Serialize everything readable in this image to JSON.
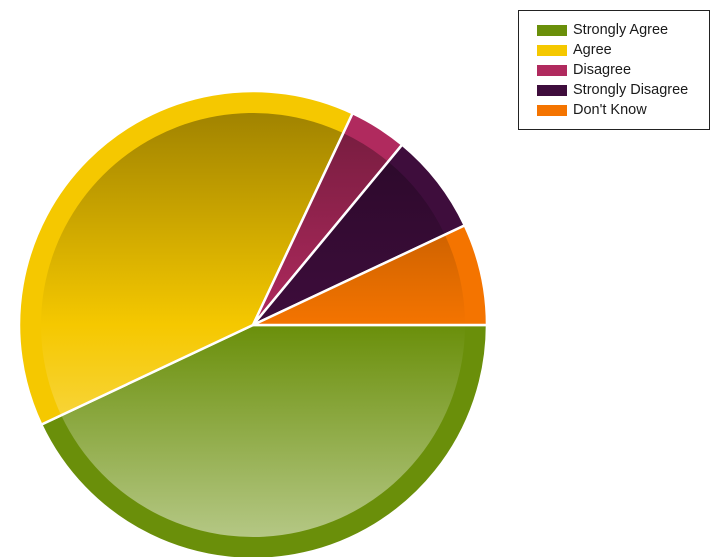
{
  "chart_data": {
    "type": "pie",
    "title": "",
    "categories": [
      "Strongly Agree",
      "Agree",
      "Disagree",
      "Strongly Disagree",
      "Don't Know"
    ],
    "values": [
      43,
      39,
      4,
      7,
      7
    ],
    "colors": [
      "#6a8f0a",
      "#f5c800",
      "#b02a5e",
      "#3e0d3c",
      "#f47400"
    ],
    "legend_position": "top-right",
    "grid": false,
    "start_angle": "3 o'clock",
    "direction": "clockwise"
  }
}
